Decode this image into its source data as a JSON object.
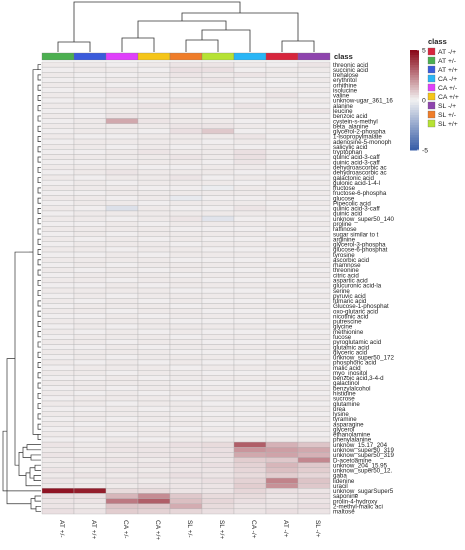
{
  "chart_data": {
    "type": "heatmap",
    "columns": [
      "AT +/-",
      "AT +/+",
      "CA +/-",
      "CA +/+",
      "SL +/-",
      "SL +/+",
      "CA -/+",
      "AT -/+",
      "SL -/+"
    ],
    "annotation_title": "class",
    "annotation_colors": {
      "AT -/+": "#d7263d",
      "AT +/-": "#4caf50",
      "AT +/+": "#3b5bdb",
      "CA -/+": "#29b6f6",
      "CA +/-": "#e040fb",
      "CA +/+": "#f5c518",
      "SL -/+": "#8e44ad",
      "SL +/-": "#ef7d2a",
      "SL +/+": "#b6e234"
    },
    "class_legend": [
      "AT -/+",
      "AT +/-",
      "AT +/+",
      "CA -/+",
      "CA +/-",
      "CA +/+",
      "SL -/+",
      "SL +/-",
      "SL +/+"
    ],
    "color_scale": {
      "min": -5,
      "max": 5,
      "ticks": [
        5,
        0,
        -5
      ],
      "low": "#3a5fa8",
      "mid": "#f2f2f2",
      "high": "#8b0a1a"
    },
    "rows": [
      "threonic acid",
      "succinic acid",
      "trehalose",
      "erythritol",
      "ornithine",
      "isolucine",
      "valine",
      "unknow-ugar_361_16",
      "alanine",
      "leucine",
      "benzoic acid",
      "cystein-s-methyl",
      "beta_alanine",
      "glycerol-2-phospha",
      "1-isopropylmalate",
      "adenosine-5-monoph",
      "salicylic acid",
      "tryptophan",
      "quinic acid-3-caff",
      "quinic acid-3-caff",
      "dehydroascorbic ac",
      "dehydroascorbic ac",
      "galactonic acid",
      "gulonic acid-1-4-l",
      "fructose",
      "fructose-6-phospha",
      "glucose",
      "Pipecolic acid",
      "quinic acid-3-caff",
      "quinic acid",
      "unknow_super50_140",
      "proline",
      "raffinose",
      "sugar similar to t",
      "arginine",
      "glycerol-3-phospha",
      "glucose-6-phosphat",
      "tyrosine",
      "ascorbic acid",
      "rhamnose",
      "threonine",
      "citric acid",
      "aspartic acid",
      "glucuronic acid-la",
      "serine",
      "pyruvic acid",
      "fumaric acid",
      "Glucose-1-phosphat",
      "oxo-glutaric acid",
      "nicotinic acid",
      "putrescine",
      "glycine",
      "methionine",
      "fucose",
      "pyroglutamic acid",
      "glutamic acid",
      "glyceric acid",
      "unknow_super50_172",
      "phosphoric acid",
      "malic acid",
      "myo_inositol",
      "benzoic acid,3-4-d",
      "galactinol",
      "benzylalcohol",
      "histidine",
      "sucrose",
      "glutamine",
      "urea",
      "lysine",
      "tyramine",
      "asparagine",
      "glycerol",
      "ethanolamine",
      "phenylalanine",
      "unknow_15.17_204",
      "unknow_super50_319",
      "unknow_super50_319",
      "D-acetoamine",
      "unknow_204_15.95",
      "unknow_super50_12.",
      "gaba",
      "lidenine",
      "uracil",
      "unknow_sugarSuper5",
      "saponine",
      "prolin-4-hydroxy",
      "2-methyl-malic aci",
      "maltose"
    ],
    "values": [
      [
        0.2,
        0.2,
        0.1,
        0.2,
        0.3,
        0.3,
        0.2,
        0.1,
        0.3
      ],
      [
        0.1,
        0.2,
        0.2,
        0.1,
        0.4,
        0.4,
        0.1,
        0.2,
        0.2
      ],
      [
        0.2,
        0.1,
        0.1,
        0.2,
        0.3,
        0.2,
        0.3,
        0.2,
        0.1
      ],
      [
        0.1,
        0.1,
        0.2,
        0.1,
        0.2,
        0.3,
        0.1,
        0.1,
        0.2
      ],
      [
        0.2,
        0.2,
        0.1,
        0.1,
        0.1,
        0.2,
        0.2,
        0.1,
        0.1
      ],
      [
        0.1,
        0.2,
        0.3,
        0.2,
        0.2,
        0.1,
        0.1,
        0.2,
        0.2
      ],
      [
        0.2,
        0.1,
        0.2,
        0.2,
        0.1,
        0.2,
        0.2,
        0.3,
        0.1
      ],
      [
        0.1,
        0.2,
        0.1,
        0.1,
        0.3,
        0.2,
        0.1,
        0.2,
        0.2
      ],
      [
        0.2,
        0.2,
        0.2,
        0.3,
        0.2,
        0.1,
        0.3,
        0.1,
        0.1
      ],
      [
        0.1,
        0.1,
        0.2,
        0.2,
        0.1,
        0.2,
        0.2,
        0.2,
        0.3
      ],
      [
        0.2,
        0.1,
        0.3,
        0.2,
        0.2,
        0.1,
        0.2,
        0.2,
        0.1
      ],
      [
        0.1,
        0.2,
        1.6,
        0.3,
        0.2,
        0.2,
        0.1,
        0.2,
        0.2
      ],
      [
        0.2,
        0.2,
        0.2,
        0.2,
        0.3,
        0.3,
        0.2,
        0.1,
        0.1
      ],
      [
        0.1,
        0.2,
        0.2,
        0.1,
        0.4,
        0.9,
        0.1,
        0.2,
        0.2
      ],
      [
        0.2,
        0.1,
        0.1,
        0.2,
        0.2,
        0.2,
        0.3,
        0.1,
        0.1
      ],
      [
        0.1,
        0.2,
        0.2,
        0.2,
        0.2,
        0.1,
        0.2,
        0.2,
        0.2
      ],
      [
        0.2,
        0.2,
        0.1,
        0.2,
        0.1,
        0.2,
        0.1,
        0.1,
        0.1
      ],
      [
        0.1,
        0.1,
        0.2,
        0.3,
        0.2,
        0.2,
        0.4,
        0.2,
        0.2
      ],
      [
        0.2,
        0.2,
        0.2,
        0.2,
        0.3,
        0.2,
        0.4,
        0.2,
        0.1
      ],
      [
        0.1,
        0.1,
        0.1,
        0.2,
        0.2,
        0.1,
        0.3,
        0.1,
        0.2
      ],
      [
        0.2,
        0.2,
        0.2,
        0.1,
        0.1,
        0.2,
        0.2,
        0.2,
        0.1
      ],
      [
        0.1,
        0.2,
        0.3,
        0.2,
        0.2,
        0.2,
        0.1,
        0.1,
        0.2
      ],
      [
        0.2,
        0.1,
        0.2,
        0.2,
        0.3,
        0.1,
        0.2,
        0.2,
        0.1
      ],
      [
        0.1,
        0.2,
        0.1,
        0.2,
        0.2,
        0.2,
        0.1,
        0.2,
        0.2
      ],
      [
        0.2,
        0.2,
        0.2,
        0.1,
        0.1,
        -0.2,
        0.2,
        0.1,
        0.1
      ],
      [
        0.1,
        0.1,
        0.2,
        0.2,
        0.2,
        0.2,
        0.2,
        0.2,
        0.2
      ],
      [
        0.2,
        0.2,
        0.1,
        0.2,
        -0.3,
        0.1,
        0.1,
        0.2,
        0.1
      ],
      [
        0.1,
        0.2,
        0.2,
        0.1,
        0.2,
        0.2,
        0.2,
        0.1,
        0.2
      ],
      [
        0.2,
        0.1,
        -0.6,
        0.2,
        0.1,
        0.1,
        0.3,
        0.2,
        0.1
      ],
      [
        0.1,
        0.2,
        0.2,
        0.2,
        0.2,
        0.2,
        0.2,
        0.2,
        0.2
      ],
      [
        0.2,
        0.2,
        0.1,
        0.2,
        0.3,
        -0.5,
        0.1,
        0.1,
        0.1
      ],
      [
        0.1,
        0.1,
        0.2,
        0.1,
        0.2,
        0.2,
        0.2,
        0.2,
        0.2
      ],
      [
        0.2,
        0.2,
        0.2,
        0.2,
        0.1,
        0.1,
        0.1,
        0.2,
        0.1
      ],
      [
        0.1,
        0.2,
        0.1,
        0.2,
        0.2,
        0.2,
        0.2,
        0.1,
        0.2
      ],
      [
        0.2,
        0.1,
        0.2,
        0.1,
        0.2,
        0.1,
        0.1,
        0.2,
        0.1
      ],
      [
        0.1,
        0.2,
        0.2,
        0.2,
        0.1,
        0.2,
        0.2,
        0.2,
        0.2
      ],
      [
        0.2,
        0.2,
        0.1,
        0.2,
        0.2,
        0.1,
        0.1,
        0.1,
        0.1
      ],
      [
        0.1,
        0.1,
        0.2,
        0.1,
        0.2,
        0.2,
        0.2,
        0.2,
        0.2
      ],
      [
        0.2,
        0.2,
        0.2,
        0.2,
        0.1,
        0.1,
        0.1,
        0.2,
        0.1
      ],
      [
        0.1,
        0.2,
        0.1,
        0.2,
        0.2,
        0.2,
        0.2,
        0.1,
        0.2
      ],
      [
        0.2,
        0.1,
        0.2,
        0.1,
        0.2,
        0.1,
        0.1,
        0.2,
        0.1
      ],
      [
        0.1,
        0.2,
        0.2,
        0.2,
        0.1,
        0.2,
        0.2,
        0.2,
        0.2
      ],
      [
        0.2,
        0.2,
        0.1,
        0.2,
        0.2,
        0.1,
        0.1,
        0.1,
        0.1
      ],
      [
        0.1,
        0.1,
        0.2,
        0.1,
        0.2,
        0.2,
        0.2,
        0.2,
        0.2
      ],
      [
        0.2,
        0.2,
        0.2,
        0.2,
        0.1,
        0.1,
        0.1,
        0.2,
        0.1
      ],
      [
        0.1,
        0.2,
        0.1,
        0.2,
        0.2,
        0.2,
        0.2,
        0.1,
        0.2
      ],
      [
        0.2,
        0.1,
        0.2,
        0.1,
        0.2,
        0.1,
        0.1,
        0.2,
        0.1
      ],
      [
        0.1,
        0.2,
        0.2,
        0.2,
        0.1,
        0.2,
        0.2,
        0.2,
        0.2
      ],
      [
        0.2,
        0.2,
        0.1,
        0.2,
        0.2,
        0.1,
        0.1,
        0.1,
        0.1
      ],
      [
        0.1,
        0.1,
        0.2,
        0.1,
        0.2,
        0.2,
        0.2,
        0.2,
        0.2
      ],
      [
        0.2,
        0.2,
        0.2,
        0.2,
        0.1,
        0.1,
        0.1,
        0.2,
        0.1
      ],
      [
        0.1,
        0.2,
        0.1,
        0.2,
        0.2,
        0.2,
        0.2,
        0.1,
        0.2
      ],
      [
        0.2,
        0.1,
        0.2,
        0.1,
        0.2,
        0.1,
        0.1,
        0.2,
        0.1
      ],
      [
        0.1,
        0.2,
        0.2,
        0.2,
        0.1,
        0.2,
        0.2,
        0.2,
        0.2
      ],
      [
        0.2,
        0.2,
        0.1,
        0.2,
        0.2,
        0.1,
        0.1,
        0.1,
        0.1
      ],
      [
        0.1,
        0.1,
        0.2,
        0.1,
        0.2,
        0.2,
        0.2,
        0.2,
        0.2
      ],
      [
        0.2,
        0.2,
        0.2,
        0.2,
        0.1,
        0.1,
        0.1,
        0.2,
        0.1
      ],
      [
        0.1,
        0.2,
        0.1,
        0.2,
        0.2,
        0.2,
        0.2,
        0.1,
        0.2
      ],
      [
        0.2,
        0.1,
        0.2,
        0.1,
        0.2,
        0.1,
        0.1,
        0.2,
        0.1
      ],
      [
        0.1,
        0.2,
        0.2,
        0.2,
        0.1,
        0.2,
        0.2,
        0.2,
        0.2
      ],
      [
        0.2,
        0.2,
        0.1,
        0.2,
        0.2,
        0.1,
        0.1,
        0.1,
        0.1
      ],
      [
        0.1,
        0.1,
        0.2,
        0.1,
        0.2,
        0.2,
        0.2,
        0.2,
        0.2
      ],
      [
        0.2,
        0.2,
        0.2,
        0.2,
        0.1,
        0.1,
        0.1,
        0.2,
        0.1
      ],
      [
        0.1,
        0.2,
        0.1,
        0.2,
        0.2,
        0.2,
        0.2,
        0.1,
        0.2
      ],
      [
        0.2,
        0.1,
        0.2,
        0.1,
        0.2,
        0.1,
        0.1,
        0.2,
        0.1
      ],
      [
        0.1,
        0.2,
        0.2,
        0.2,
        0.1,
        0.2,
        0.2,
        0.2,
        0.2
      ],
      [
        0.2,
        0.2,
        0.1,
        0.2,
        0.2,
        0.1,
        0.1,
        0.1,
        0.1
      ],
      [
        0.1,
        0.1,
        0.2,
        0.1,
        0.2,
        0.2,
        0.2,
        0.2,
        0.2
      ],
      [
        0.2,
        0.2,
        0.2,
        0.2,
        0.1,
        0.1,
        0.1,
        0.2,
        0.1
      ],
      [
        0.1,
        0.2,
        0.1,
        0.2,
        0.2,
        0.2,
        0.2,
        0.1,
        0.2
      ],
      [
        0.2,
        0.1,
        0.2,
        0.1,
        0.2,
        0.1,
        0.1,
        0.2,
        0.1
      ],
      [
        0.1,
        0.2,
        0.2,
        0.2,
        0.1,
        0.2,
        0.2,
        0.2,
        0.2
      ],
      [
        0.2,
        0.2,
        0.1,
        0.2,
        0.2,
        0.1,
        0.1,
        0.1,
        0.1
      ],
      [
        0.1,
        0.1,
        0.2,
        0.1,
        0.2,
        0.2,
        0.2,
        0.2,
        0.2
      ],
      [
        0.3,
        0.2,
        0.3,
        0.3,
        0.4,
        0.5,
        3.2,
        1.4,
        1.0
      ],
      [
        0.2,
        0.2,
        0.3,
        0.3,
        0.3,
        0.4,
        2.0,
        1.8,
        1.6
      ],
      [
        0.3,
        0.2,
        0.2,
        0.3,
        0.3,
        0.4,
        1.6,
        1.7,
        1.4
      ],
      [
        0.2,
        0.3,
        0.3,
        0.2,
        0.4,
        0.3,
        0.8,
        0.9,
        2.3
      ],
      [
        0.2,
        0.2,
        0.2,
        0.3,
        0.3,
        0.4,
        0.7,
        1.3,
        0.9
      ],
      [
        0.3,
        0.2,
        0.3,
        0.2,
        0.3,
        0.3,
        0.6,
        1.1,
        0.8
      ],
      [
        0.2,
        0.3,
        0.2,
        0.3,
        0.4,
        0.3,
        0.5,
        0.8,
        0.6
      ],
      [
        0.3,
        0.2,
        0.3,
        0.2,
        0.3,
        0.4,
        0.7,
        2.4,
        1.0
      ],
      [
        0.2,
        0.2,
        0.2,
        0.3,
        0.3,
        0.3,
        0.8,
        2.1,
        0.9
      ],
      [
        4.8,
        4.6,
        0.5,
        0.5,
        0.3,
        0.3,
        0.6,
        0.4,
        0.3
      ],
      [
        0.4,
        0.4,
        1.3,
        2.2,
        0.9,
        0.5,
        0.5,
        0.3,
        0.4
      ],
      [
        0.3,
        0.3,
        2.6,
        3.2,
        1.1,
        0.6,
        0.4,
        0.3,
        0.3
      ],
      [
        0.3,
        0.2,
        1.0,
        0.9,
        1.5,
        0.5,
        0.3,
        0.3,
        0.4
      ],
      [
        0.4,
        0.3,
        0.8,
        0.7,
        0.6,
        0.4,
        0.3,
        0.4,
        0.3
      ]
    ]
  }
}
